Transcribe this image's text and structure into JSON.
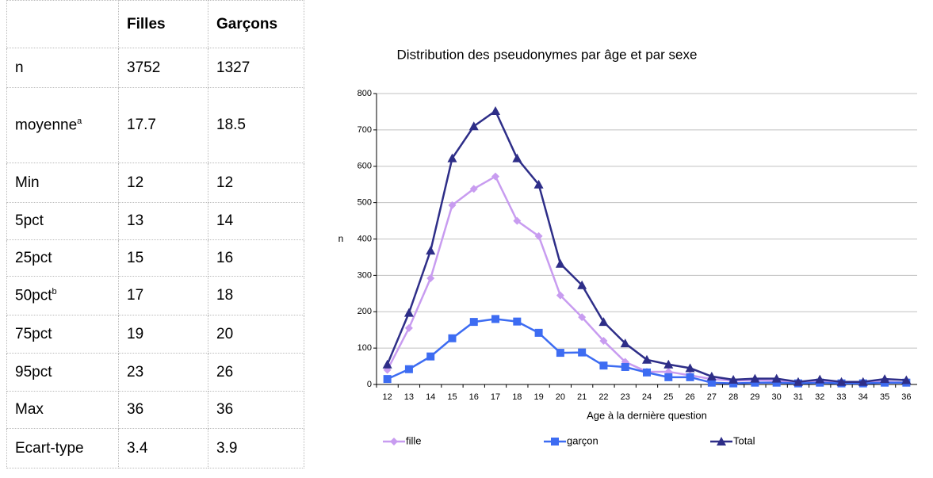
{
  "table": {
    "header": [
      "Filles",
      "Garçons"
    ],
    "rows": [
      {
        "label": "n",
        "values": [
          "3752",
          "1327"
        ]
      },
      {
        "label": "moyenne",
        "sup": "a",
        "values": [
          "17.7",
          "18.5"
        ]
      },
      {
        "label": "Min",
        "values": [
          "12",
          "12"
        ]
      },
      {
        "label": "5pct",
        "values": [
          "13",
          "14"
        ]
      },
      {
        "label": "25pct",
        "values": [
          "15",
          "16"
        ]
      },
      {
        "label": "50pct",
        "sup": "b",
        "values": [
          "17",
          "18"
        ]
      },
      {
        "label": "75pct",
        "values": [
          "19",
          "20"
        ]
      },
      {
        "label": "95pct",
        "values": [
          "23",
          "26"
        ]
      },
      {
        "label": "Max",
        "values": [
          "36",
          "36"
        ]
      },
      {
        "label": "Ecart-type",
        "values": [
          "3.4",
          "3.9"
        ]
      }
    ]
  },
  "chart_data": {
    "type": "line",
    "title": "Distribution des pseudonymes par âge et par sexe",
    "x_label": "Age à la dernière question",
    "y_label": "n",
    "categories": [
      "12",
      "13",
      "14",
      "15",
      "16",
      "17",
      "18",
      "19",
      "20",
      "21",
      "22",
      "23",
      "24",
      "25",
      "26",
      "27",
      "28",
      "29",
      "30",
      "31",
      "32",
      "33",
      "34",
      "35",
      "36"
    ],
    "series": [
      {
        "name": "fille",
        "color": "#c89cf0",
        "marker": "diamond",
        "values": [
          40,
          155,
          292,
          493,
          538,
          572,
          450,
          408,
          245,
          185,
          120,
          62,
          35,
          35,
          25,
          15,
          10,
          12,
          10,
          5,
          10,
          5,
          5,
          8,
          5
        ]
      },
      {
        "name": "garçon",
        "color": "#3d6cf2",
        "marker": "square",
        "values": [
          15,
          42,
          77,
          127,
          172,
          180,
          173,
          142,
          87,
          88,
          52,
          48,
          33,
          20,
          20,
          5,
          3,
          5,
          5,
          3,
          5,
          3,
          3,
          5,
          5
        ]
      },
      {
        "name": "Total",
        "color": "#2e2e88",
        "marker": "triangle",
        "values": [
          55,
          197,
          368,
          622,
          710,
          752,
          622,
          550,
          332,
          273,
          172,
          113,
          68,
          55,
          45,
          22,
          13,
          16,
          16,
          7,
          14,
          7,
          7,
          15,
          12
        ]
      }
    ],
    "ylim": [
      0,
      800
    ],
    "yticks": [
      0,
      100,
      200,
      300,
      400,
      500,
      600,
      700,
      800
    ],
    "grid": true,
    "legend": "bottom"
  }
}
